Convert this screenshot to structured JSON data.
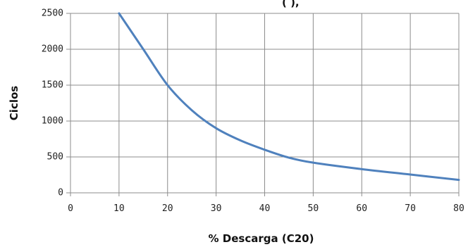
{
  "chart_data": {
    "type": "line",
    "title_fragment": "(   ),",
    "xlabel": "% Descarga (C20)",
    "ylabel": "Ciclos",
    "xlim": [
      0,
      80
    ],
    "ylim": [
      0,
      2500
    ],
    "x_ticks": [
      0,
      10,
      20,
      30,
      40,
      50,
      60,
      70,
      80
    ],
    "y_ticks": [
      0,
      500,
      1000,
      1500,
      2000,
      2500
    ],
    "grid": true,
    "series": [
      {
        "color": "#4f81bd",
        "points": [
          [
            10,
            2500
          ],
          [
            15,
            2000
          ],
          [
            20,
            1500
          ],
          [
            25,
            1150
          ],
          [
            30,
            900
          ],
          [
            35,
            730
          ],
          [
            40,
            600
          ],
          [
            45,
            490
          ],
          [
            50,
            420
          ],
          [
            60,
            330
          ],
          [
            70,
            255
          ],
          [
            80,
            180
          ]
        ]
      }
    ]
  }
}
